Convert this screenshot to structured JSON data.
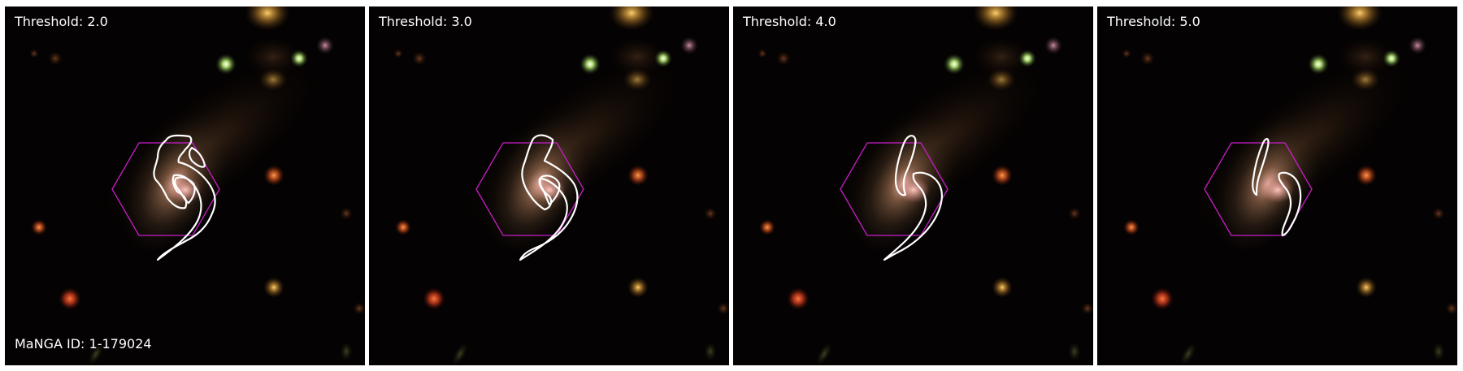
{
  "panels": [
    {
      "threshold_label": "Threshold: 2.0"
    },
    {
      "threshold_label": "Threshold: 3.0"
    },
    {
      "threshold_label": "Threshold: 4.0"
    },
    {
      "threshold_label": "Threshold: 5.0"
    }
  ],
  "manga_id_label": "MaNGA ID: 1-179024",
  "colors": {
    "background": "#040202",
    "hexagon": "#c81ec8",
    "contour": "#ffffff",
    "separator": "#ffffff"
  }
}
